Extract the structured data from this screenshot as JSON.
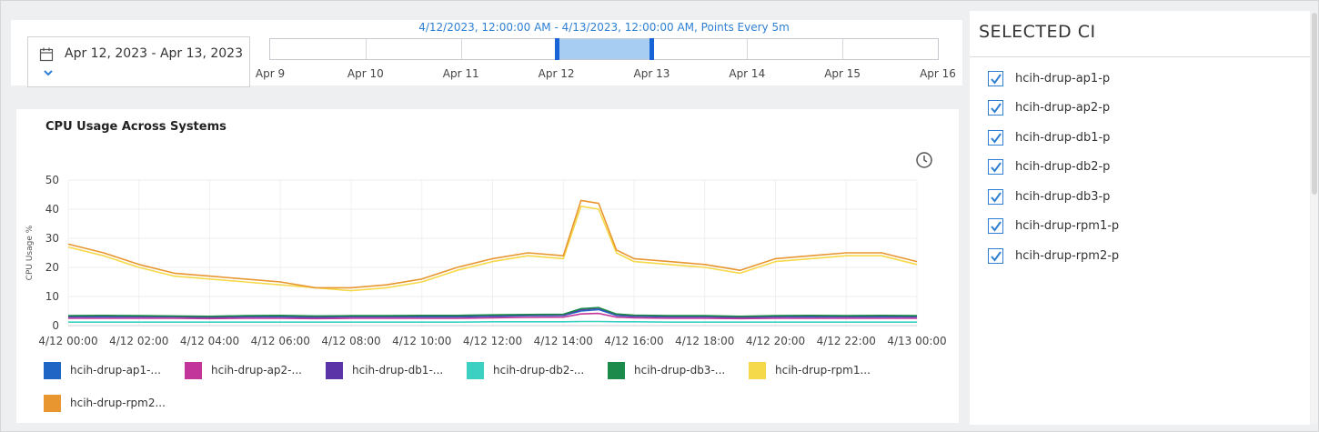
{
  "time_range": {
    "picker_label": "Apr 12, 2023 - Apr 13, 2023",
    "caption": "4/12/2023, 12:00:00 AM - 4/13/2023, 12:00:00 AM, Points Every 5m",
    "slider_dates": [
      "Apr 9",
      "Apr 10",
      "Apr 11",
      "Apr 12",
      "Apr 13",
      "Apr 14",
      "Apr 15",
      "Apr 16"
    ],
    "selected_start": "Apr 12",
    "selected_end": "Apr 13",
    "selection_color": "#a8cdf3",
    "handle_color": "#1864d6"
  },
  "selected_ci": {
    "title": "SELECTED CI",
    "items": [
      {
        "label": "hcih-drup-ap1-p",
        "checked": true
      },
      {
        "label": "hcih-drup-ap2-p",
        "checked": true
      },
      {
        "label": "hcih-drup-db1-p",
        "checked": true
      },
      {
        "label": "hcih-drup-db2-p",
        "checked": true
      },
      {
        "label": "hcih-drup-db3-p",
        "checked": true
      },
      {
        "label": "hcih-drup-rpm1-p",
        "checked": true
      },
      {
        "label": "hcih-drup-rpm2-p",
        "checked": true
      }
    ]
  },
  "chart_data": {
    "type": "line",
    "title": "CPU Usage Across Systems",
    "ylabel": "CPU Usage %",
    "xlabel": "",
    "ylim": [
      0,
      50
    ],
    "yticks": [
      0,
      10,
      20,
      30,
      40,
      50
    ],
    "xticks": [
      "4/12 00:00",
      "4/12 02:00",
      "4/12 04:00",
      "4/12 06:00",
      "4/12 08:00",
      "4/12 10:00",
      "4/12 12:00",
      "4/12 14:00",
      "4/12 16:00",
      "4/12 18:00",
      "4/12 20:00",
      "4/12 22:00",
      "4/13 00:00"
    ],
    "grid": true,
    "legend_position": "bottom",
    "x": [
      "00:00",
      "01:00",
      "02:00",
      "03:00",
      "04:00",
      "05:00",
      "06:00",
      "07:00",
      "08:00",
      "09:00",
      "10:00",
      "11:00",
      "12:00",
      "13:00",
      "14:00",
      "14:30",
      "15:00",
      "15:30",
      "16:00",
      "17:00",
      "18:00",
      "19:00",
      "20:00",
      "21:00",
      "22:00",
      "23:00",
      "24:00"
    ],
    "series": [
      {
        "name": "hcih-drup-ap1-...",
        "color": "#1f66c4",
        "values": [
          3,
          3,
          3,
          3,
          2.8,
          3,
          3,
          2.8,
          3,
          3,
          3,
          3,
          3.2,
          3.4,
          3.5,
          5,
          5.5,
          3.5,
          3.2,
          3,
          3,
          2.8,
          3,
          3,
          3,
          3,
          3
        ]
      },
      {
        "name": "hcih-drup-ap2-...",
        "color": "#c2359a",
        "values": [
          2.5,
          2.5,
          2.5,
          2.5,
          2.4,
          2.5,
          2.5,
          2.4,
          2.5,
          2.5,
          2.5,
          2.5,
          2.7,
          2.8,
          2.9,
          4,
          4.2,
          2.9,
          2.7,
          2.5,
          2.5,
          2.4,
          2.5,
          2.5,
          2.5,
          2.5,
          2.5
        ]
      },
      {
        "name": "hcih-drup-db1-...",
        "color": "#5b35a8",
        "values": [
          3.2,
          3.3,
          3.2,
          3.1,
          3,
          3.2,
          3.3,
          3.1,
          3.2,
          3.2,
          3.3,
          3.3,
          3.5,
          3.6,
          3.7,
          5.5,
          6,
          3.8,
          3.4,
          3.2,
          3.2,
          3,
          3.2,
          3.3,
          3.2,
          3.3,
          3.2
        ]
      },
      {
        "name": "hcih-drup-db2-...",
        "color": "#3bd0c1",
        "values": [
          1.2,
          1.2,
          1.2,
          1.2,
          1.2,
          1.2,
          1.2,
          1.2,
          1.2,
          1.2,
          1.2,
          1.2,
          1.3,
          1.3,
          1.3,
          1.4,
          1.4,
          1.3,
          1.3,
          1.2,
          1.2,
          1.2,
          1.2,
          1.2,
          1.2,
          1.2,
          1.2
        ]
      },
      {
        "name": "hcih-drup-db3-...",
        "color": "#1b8a4a",
        "values": [
          3.4,
          3.5,
          3.4,
          3.3,
          3.2,
          3.4,
          3.5,
          3.3,
          3.4,
          3.4,
          3.5,
          3.5,
          3.7,
          3.8,
          3.9,
          5.8,
          6.2,
          4,
          3.6,
          3.4,
          3.4,
          3.2,
          3.4,
          3.5,
          3.4,
          3.5,
          3.4
        ]
      },
      {
        "name": "hcih-drup-rpm1...",
        "color": "#f6d94a",
        "values": [
          27,
          24,
          20,
          17,
          16,
          15,
          14,
          13,
          12,
          13,
          15,
          19,
          22,
          24,
          23,
          41,
          40,
          25,
          22,
          21,
          20,
          18,
          22,
          23,
          24,
          24,
          21
        ]
      },
      {
        "name": "hcih-drup-rpm2...",
        "color": "#e8962f",
        "values": [
          28,
          25,
          21,
          18,
          17,
          16,
          15,
          13,
          13,
          14,
          16,
          20,
          23,
          25,
          24,
          43,
          42,
          26,
          23,
          22,
          21,
          19,
          23,
          24,
          25,
          25,
          22
        ]
      }
    ]
  }
}
